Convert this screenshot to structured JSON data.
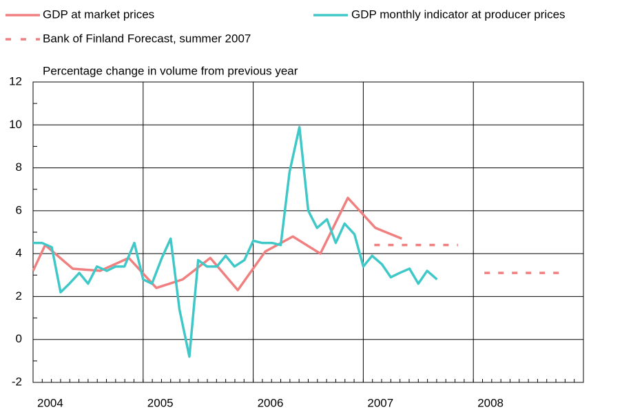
{
  "chart_data": {
    "type": "line",
    "subtitle": "Percentage change in volume from previous year",
    "xlim": [
      2004,
      2009
    ],
    "xticks": [
      2004,
      2005,
      2006,
      2007,
      2008
    ],
    "ylim": [
      -2,
      12
    ],
    "yticks": [
      -2,
      0,
      2,
      4,
      6,
      8,
      10,
      12
    ],
    "grid": true,
    "series": [
      {
        "name": "GDP at market prices",
        "color": "#f08080",
        "dash": false,
        "x": [
          2004.0,
          2004.11,
          2004.36,
          2004.61,
          2004.87,
          2005.12,
          2005.36,
          2005.61,
          2005.86,
          2006.11,
          2006.36,
          2006.61,
          2006.86,
          2007.11,
          2007.35
        ],
        "values": [
          3.2,
          4.4,
          3.3,
          3.2,
          3.8,
          2.4,
          2.8,
          3.8,
          2.3,
          4.1,
          4.8,
          4.0,
          6.6,
          5.2,
          4.7
        ]
      },
      {
        "name": "GDP monthly indicator at producer prices",
        "color": "#40c8c8",
        "dash": false,
        "x": [
          2004.0,
          2004.08,
          2004.17,
          2004.25,
          2004.33,
          2004.42,
          2004.5,
          2004.58,
          2004.67,
          2004.75,
          2004.83,
          2004.92,
          2005.0,
          2005.08,
          2005.17,
          2005.25,
          2005.33,
          2005.42,
          2005.5,
          2005.58,
          2005.67,
          2005.75,
          2005.83,
          2005.92,
          2006.0,
          2006.08,
          2006.17,
          2006.25,
          2006.33,
          2006.42,
          2006.5,
          2006.58,
          2006.67,
          2006.75,
          2006.83,
          2006.92,
          2007.0,
          2007.08,
          2007.17,
          2007.25,
          2007.33,
          2007.42,
          2007.5,
          2007.58,
          2007.67
        ],
        "values": [
          4.5,
          4.5,
          4.3,
          2.2,
          2.6,
          3.1,
          2.6,
          3.4,
          3.2,
          3.4,
          3.4,
          4.5,
          2.8,
          2.6,
          3.8,
          4.7,
          1.4,
          -0.8,
          3.7,
          3.4,
          3.4,
          3.9,
          3.4,
          3.7,
          4.6,
          4.5,
          4.5,
          4.4,
          7.8,
          9.9,
          6.0,
          5.2,
          5.6,
          4.5,
          5.4,
          4.9,
          3.4,
          3.9,
          3.5,
          2.9,
          3.1,
          3.3,
          2.6,
          3.2,
          2.8
        ]
      },
      {
        "name": "Bank of Finland Forecast, summer 2007",
        "color": "#f08080",
        "dash": true,
        "x": [
          2007.1,
          2007.86,
          2007.95,
          2008.1,
          2008.85
        ],
        "values": [
          4.4,
          4.4,
          null,
          3.1,
          3.1
        ]
      }
    ]
  }
}
